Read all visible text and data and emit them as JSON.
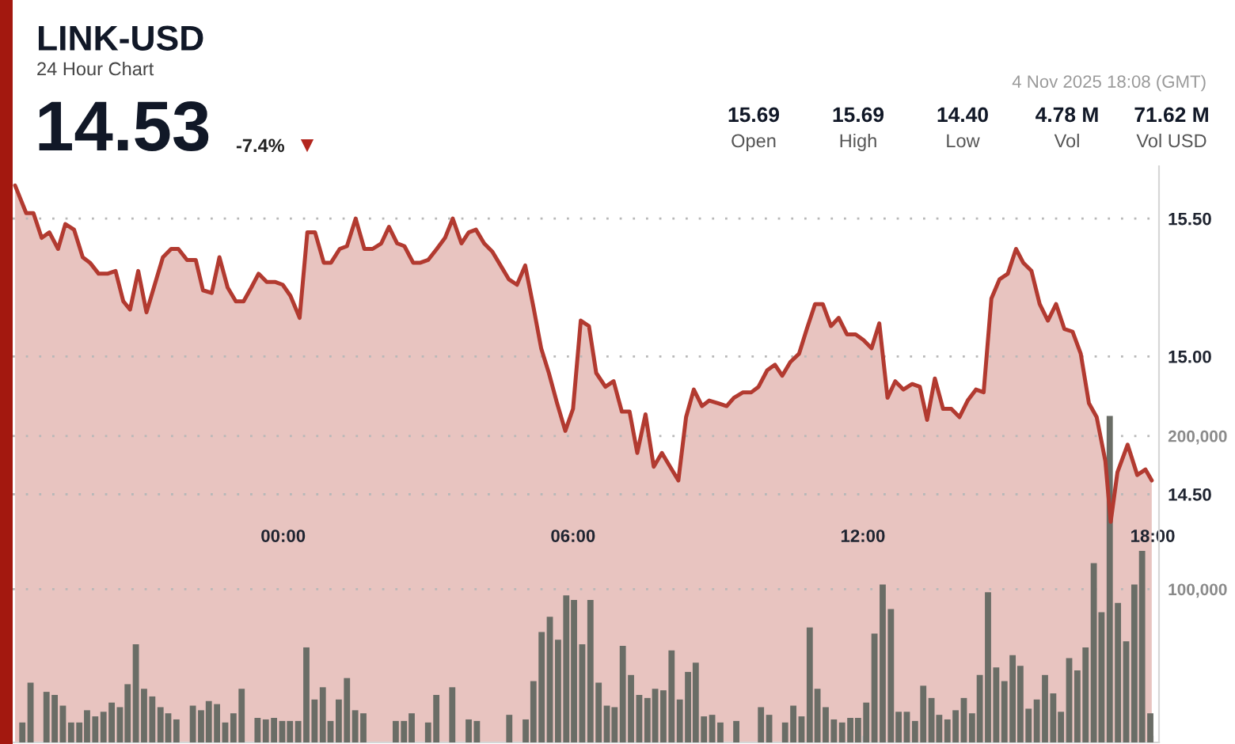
{
  "chart_data": {
    "type": "area",
    "title": "LINK-USD",
    "subtitle": "24 Hour Chart",
    "annotations": [
      "14.53",
      "-7.4%",
      "▼",
      "4 Nov 2025 18:08 (GMT)",
      "15.69",
      "Open",
      "15.69",
      "High",
      "14.40",
      "Low",
      "4.78 M",
      "Vol",
      "71.62 M",
      "Vol USD"
    ],
    "series": [
      {
        "color": "#b23a30",
        "x": [
          -5.55,
          -5.32,
          -5.17,
          -5.0,
          -4.84,
          -4.66,
          -4.51,
          -4.33,
          -4.15,
          -4.0,
          -3.82,
          -3.64,
          -3.47,
          -3.31,
          -3.17,
          -3.0,
          -2.83,
          -2.66,
          -2.49,
          -2.32,
          -2.17,
          -1.99,
          -1.81,
          -1.66,
          -1.48,
          -1.32,
          -1.15,
          -0.98,
          -0.82,
          -0.66,
          -0.51,
          -0.34,
          -0.16,
          -0.01,
          0.15,
          0.34,
          0.5,
          0.66,
          0.84,
          0.99,
          1.17,
          1.32,
          1.5,
          1.68,
          1.85,
          2.03,
          2.19,
          2.36,
          2.51,
          2.69,
          2.84,
          3.0,
          3.18,
          3.35,
          3.51,
          3.69,
          3.84,
          3.99,
          4.16,
          4.33,
          4.5,
          4.67,
          4.84,
          5.01,
          5.18,
          5.34,
          5.5,
          5.67,
          5.84,
          6.0,
          6.16,
          6.33,
          6.48,
          6.67,
          6.84,
          7.01,
          7.17,
          7.33,
          7.5,
          7.67,
          7.84,
          8.01,
          8.18,
          8.34,
          8.5,
          8.67,
          8.82,
          9.01,
          9.18,
          9.33,
          9.52,
          9.69,
          9.84,
          10.02,
          10.18,
          10.33,
          10.5,
          10.68,
          10.84,
          11.01,
          11.17,
          11.34,
          11.5,
          11.67,
          11.85,
          12.01,
          12.18,
          12.34,
          12.51,
          12.67,
          12.84,
          13.02,
          13.18,
          13.33,
          13.49,
          13.66,
          13.83,
          14.0,
          14.17,
          14.34,
          14.5,
          14.66,
          14.83,
          15.0,
          15.17,
          15.32,
          15.49,
          15.66,
          15.83,
          16.0,
          16.17,
          16.34,
          16.51,
          16.68,
          16.84,
          17.02,
          17.13,
          17.27,
          17.48,
          17.68,
          17.85,
          17.98
        ],
        "values": [
          15.62,
          15.52,
          15.52,
          15.43,
          15.45,
          15.39,
          15.48,
          15.46,
          15.36,
          15.34,
          15.3,
          15.3,
          15.31,
          15.2,
          15.17,
          15.31,
          15.16,
          15.26,
          15.36,
          15.39,
          15.39,
          15.35,
          15.35,
          15.24,
          15.23,
          15.36,
          15.25,
          15.2,
          15.2,
          15.25,
          15.3,
          15.27,
          15.27,
          15.26,
          15.22,
          15.14,
          15.45,
          15.45,
          15.34,
          15.34,
          15.39,
          15.4,
          15.5,
          15.39,
          15.39,
          15.41,
          15.47,
          15.41,
          15.4,
          15.34,
          15.34,
          15.35,
          15.39,
          15.43,
          15.5,
          15.41,
          15.45,
          15.46,
          15.41,
          15.38,
          15.33,
          15.28,
          15.26,
          15.33,
          15.18,
          15.03,
          14.94,
          14.83,
          14.73,
          14.81,
          15.13,
          15.11,
          14.94,
          14.89,
          14.91,
          14.8,
          14.8,
          14.65,
          14.79,
          14.6,
          14.65,
          14.6,
          14.55,
          14.78,
          14.88,
          14.82,
          14.84,
          14.83,
          14.82,
          14.85,
          14.87,
          14.87,
          14.89,
          14.95,
          14.97,
          14.93,
          14.98,
          15.01,
          15.1,
          15.19,
          15.19,
          15.11,
          15.14,
          15.08,
          15.08,
          15.06,
          15.03,
          15.12,
          14.85,
          14.91,
          14.88,
          14.9,
          14.89,
          14.77,
          14.92,
          14.81,
          14.81,
          14.78,
          14.84,
          14.88,
          14.87,
          15.21,
          15.28,
          15.3,
          15.39,
          15.34,
          15.31,
          15.19,
          15.13,
          15.19,
          15.1,
          15.09,
          15.01,
          14.83,
          14.78,
          14.62,
          14.4,
          14.58,
          14.68,
          14.57,
          14.59,
          14.55
        ]
      },
      {
        "type": "bar",
        "axis": "y2",
        "color": "#6a6d66",
        "x": [
          -5.4,
          -5.23,
          -5.06,
          -4.9,
          -4.73,
          -4.56,
          -4.39,
          -4.22,
          -4.06,
          -3.89,
          -3.72,
          -3.55,
          -3.38,
          -3.22,
          -3.05,
          -2.88,
          -2.71,
          -2.54,
          -2.38,
          -2.21,
          -2.04,
          -1.87,
          -1.7,
          -1.54,
          -1.37,
          -1.2,
          -1.03,
          -0.86,
          -0.7,
          -0.53,
          -0.36,
          -0.19,
          -0.02,
          0.14,
          0.31,
          0.48,
          0.65,
          0.82,
          0.98,
          1.15,
          1.32,
          1.49,
          1.66,
          1.82,
          1.99,
          2.16,
          2.33,
          2.5,
          2.66,
          2.83,
          3.0,
          3.17,
          3.34,
          3.5,
          3.67,
          3.84,
          4.01,
          4.18,
          4.34,
          4.51,
          4.68,
          4.85,
          5.02,
          5.18,
          5.35,
          5.52,
          5.69,
          5.86,
          6.02,
          6.19,
          6.36,
          6.53,
          6.7,
          6.86,
          7.03,
          7.2,
          7.37,
          7.54,
          7.7,
          7.87,
          8.04,
          8.21,
          8.38,
          8.54,
          8.71,
          8.88,
          9.05,
          9.22,
          9.38,
          9.55,
          9.72,
          9.89,
          10.06,
          10.22,
          10.39,
          10.56,
          10.73,
          10.9,
          11.06,
          11.23,
          11.4,
          11.57,
          11.74,
          11.9,
          12.07,
          12.24,
          12.41,
          12.58,
          12.74,
          12.91,
          13.08,
          13.25,
          13.42,
          13.58,
          13.75,
          13.92,
          14.09,
          14.26,
          14.42,
          14.59,
          14.76,
          14.93,
          15.1,
          15.26,
          15.43,
          15.6,
          15.77,
          15.94,
          16.1,
          16.27,
          16.44,
          16.61,
          16.78,
          16.94,
          17.11,
          17.28,
          17.45,
          17.62,
          17.78,
          17.95
        ],
        "values": [
          13000,
          39000,
          null,
          33000,
          31000,
          24000,
          13000,
          13000,
          21000,
          17000,
          20000,
          26000,
          23000,
          38000,
          64000,
          35000,
          30000,
          23000,
          19000,
          15000,
          null,
          24000,
          21000,
          27000,
          25000,
          13000,
          19000,
          35000,
          null,
          16000,
          15000,
          16000,
          14000,
          14000,
          14000,
          62000,
          28000,
          36000,
          14000,
          28000,
          42000,
          21000,
          19000,
          null,
          null,
          null,
          14000,
          14000,
          19000,
          null,
          13000,
          31000,
          null,
          36000,
          null,
          15000,
          14000,
          null,
          null,
          null,
          18000,
          null,
          15000,
          40000,
          72000,
          82000,
          67000,
          96000,
          93000,
          64000,
          93000,
          39000,
          24000,
          23000,
          63000,
          44000,
          31000,
          29000,
          35000,
          34000,
          60000,
          28000,
          46000,
          52000,
          17000,
          18000,
          13000,
          null,
          14000,
          null,
          null,
          23000,
          18000,
          null,
          13000,
          24000,
          17000,
          75000,
          35000,
          23000,
          15000,
          13000,
          16000,
          16000,
          26000,
          71000,
          103000,
          87000,
          20000,
          20000,
          14000,
          37000,
          29000,
          18000,
          15000,
          21000,
          29000,
          19000,
          44000,
          98000,
          49000,
          40000,
          57000,
          50000,
          22000,
          28000,
          44000,
          32000,
          20000,
          55000,
          47000,
          62000,
          117000,
          85000,
          213000,
          91000,
          66000,
          103000,
          125000,
          19000
        ]
      }
    ],
    "xlim": [
      -5.6,
      18.13
    ],
    "xticks": [
      {
        "value": 0,
        "label": "00:00"
      },
      {
        "value": 6,
        "label": "06:00"
      },
      {
        "value": 12,
        "label": "12:00"
      },
      {
        "value": 18,
        "label": "18:00"
      }
    ],
    "ylim": [
      13.6,
      15.69
    ],
    "yticks": [
      {
        "value": 14.5,
        "label": "14.50"
      },
      {
        "value": 15,
        "label": "15.00"
      },
      {
        "value": 15.5,
        "label": "15.50"
      }
    ],
    "y2lim": [
      0,
      376000
    ],
    "y2ticks": [
      {
        "value": 100000,
        "label": "100,000"
      },
      {
        "value": 200000,
        "label": "200,000"
      }
    ],
    "grid": "y"
  }
}
